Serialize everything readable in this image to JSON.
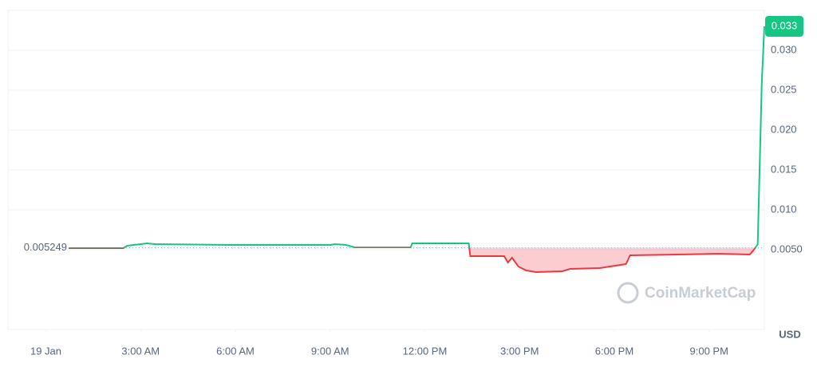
{
  "chart_data": {
    "type": "line",
    "x": [
      0.68,
      2.45,
      2.58,
      3.21,
      3.46,
      5.86,
      9.02,
      9.15,
      9.5,
      9.78,
      11.55,
      11.6,
      13.39,
      13.44,
      14.51,
      14.63,
      14.76,
      14.96,
      15.21,
      15.52,
      16.35,
      16.6,
      17.54,
      18.37,
      18.5,
      20.02,
      21.28,
      22.29,
      22.42,
      22.54,
      22.67,
      22.75
    ],
    "values": [
      0.0052,
      0.0052,
      0.0055,
      0.0058,
      0.0057,
      0.0056,
      0.0056,
      0.0057,
      0.0056,
      0.0053,
      0.0053,
      0.0058,
      0.0058,
      0.0042,
      0.0042,
      0.0034,
      0.004,
      0.0029,
      0.0024,
      0.0022,
      0.0023,
      0.0026,
      0.0027,
      0.0032,
      0.0043,
      0.0044,
      0.0045,
      0.0044,
      0.005,
      0.0057,
      0.026,
      0.033
    ],
    "value_labels": [
      null,
      null,
      null,
      null,
      null,
      null,
      null,
      null,
      null,
      null,
      null,
      null,
      null,
      null,
      null,
      null,
      null,
      null,
      null,
      null,
      null,
      null,
      null,
      null,
      null,
      null,
      null,
      null,
      null,
      null,
      null,
      "0.033"
    ],
    "baseline": 0.005249,
    "up_color": "#16c784",
    "down_color": "#ea3943",
    "xlim": [
      -1.2,
      22.75
    ],
    "xticks": [
      {
        "value": 0,
        "label": "19 Jan"
      },
      {
        "value": 3,
        "label": "3:00 AM"
      },
      {
        "value": 6,
        "label": "6:00 AM"
      },
      {
        "value": 9,
        "label": "9:00 AM"
      },
      {
        "value": 12,
        "label": "12:00 PM"
      },
      {
        "value": 15,
        "label": "3:00 PM"
      },
      {
        "value": 18,
        "label": "6:00 PM"
      },
      {
        "value": 21,
        "label": "9:00 PM"
      }
    ],
    "ylim": [
      -0.005,
      0.035
    ],
    "yticks": [
      {
        "value": 0.005,
        "label": "0.0050"
      },
      {
        "value": 0.01,
        "label": "0.010"
      },
      0.015,
      {
        "value": 0.02,
        "label": "0.020"
      },
      0.025,
      {
        "value": 0.03,
        "label": "0.030"
      }
    ],
    "grid": true,
    "currency": "USD",
    "watermark": "CoinMarketCap"
  }
}
